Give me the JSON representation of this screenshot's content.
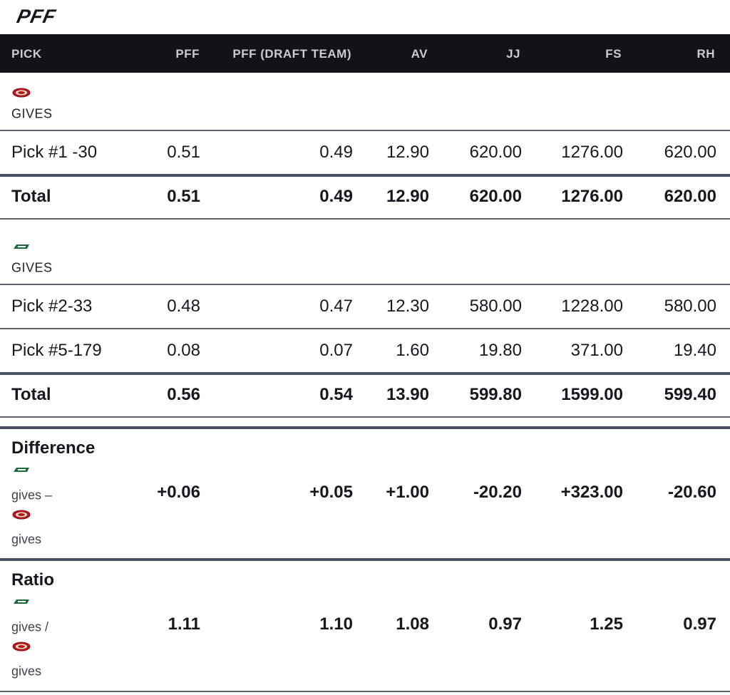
{
  "header": {
    "logo": "PFF"
  },
  "table": {
    "columns": [
      "PICK",
      "PFF",
      "PFF (DRAFT TEAM)",
      "AV",
      "JJ",
      "FS",
      "RH"
    ],
    "teams": [
      {
        "label": "GIVES",
        "rows": [
          {
            "pick": "Pick #1 -30",
            "values": [
              "0.51",
              "0.49",
              "12.90",
              "620.00",
              "1276.00",
              "620.00"
            ]
          }
        ],
        "total": {
          "label": "Total",
          "values": [
            "0.51",
            "0.49",
            "12.90",
            "620.00",
            "1276.00",
            "620.00"
          ]
        }
      },
      {
        "label": "GIVES",
        "rows": [
          {
            "pick": "Pick #2-33",
            "values": [
              "0.48",
              "0.47",
              "12.30",
              "580.00",
              "1228.00",
              "580.00"
            ]
          },
          {
            "pick": "Pick #5-179",
            "values": [
              "0.08",
              "0.07",
              "1.60",
              "19.80",
              "371.00",
              "19.40"
            ]
          }
        ],
        "total": {
          "label": "Total",
          "values": [
            "0.56",
            "0.54",
            "13.90",
            "599.80",
            "1599.00",
            "599.40"
          ]
        }
      }
    ],
    "difference": {
      "title": "Difference",
      "line1": "gives –",
      "line2": "gives",
      "values": [
        "+0.06",
        "+0.05",
        "+1.00",
        "-20.20",
        "+323.00",
        "-20.60"
      ]
    },
    "ratio": {
      "title": "Ratio",
      "line1": "gives /",
      "line2": "gives",
      "values": [
        "1.11",
        "1.10",
        "1.08",
        "0.97",
        "1.25",
        "0.97"
      ]
    }
  }
}
